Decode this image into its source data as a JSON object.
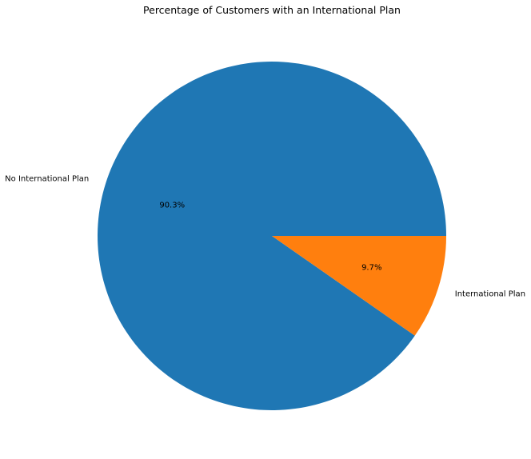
{
  "chart_data": {
    "type": "pie",
    "title": "Percentage of Customers with an International Plan",
    "labels": [
      "No International Plan",
      "International Plan"
    ],
    "values": [
      90.3,
      9.7
    ],
    "percent_labels": [
      "90.3%",
      "9.7%"
    ],
    "colors": [
      "#1f77b4",
      "#ff7f0e"
    ],
    "start_angle_deg": 0,
    "direction": "counterclockwise",
    "legend": "none"
  }
}
